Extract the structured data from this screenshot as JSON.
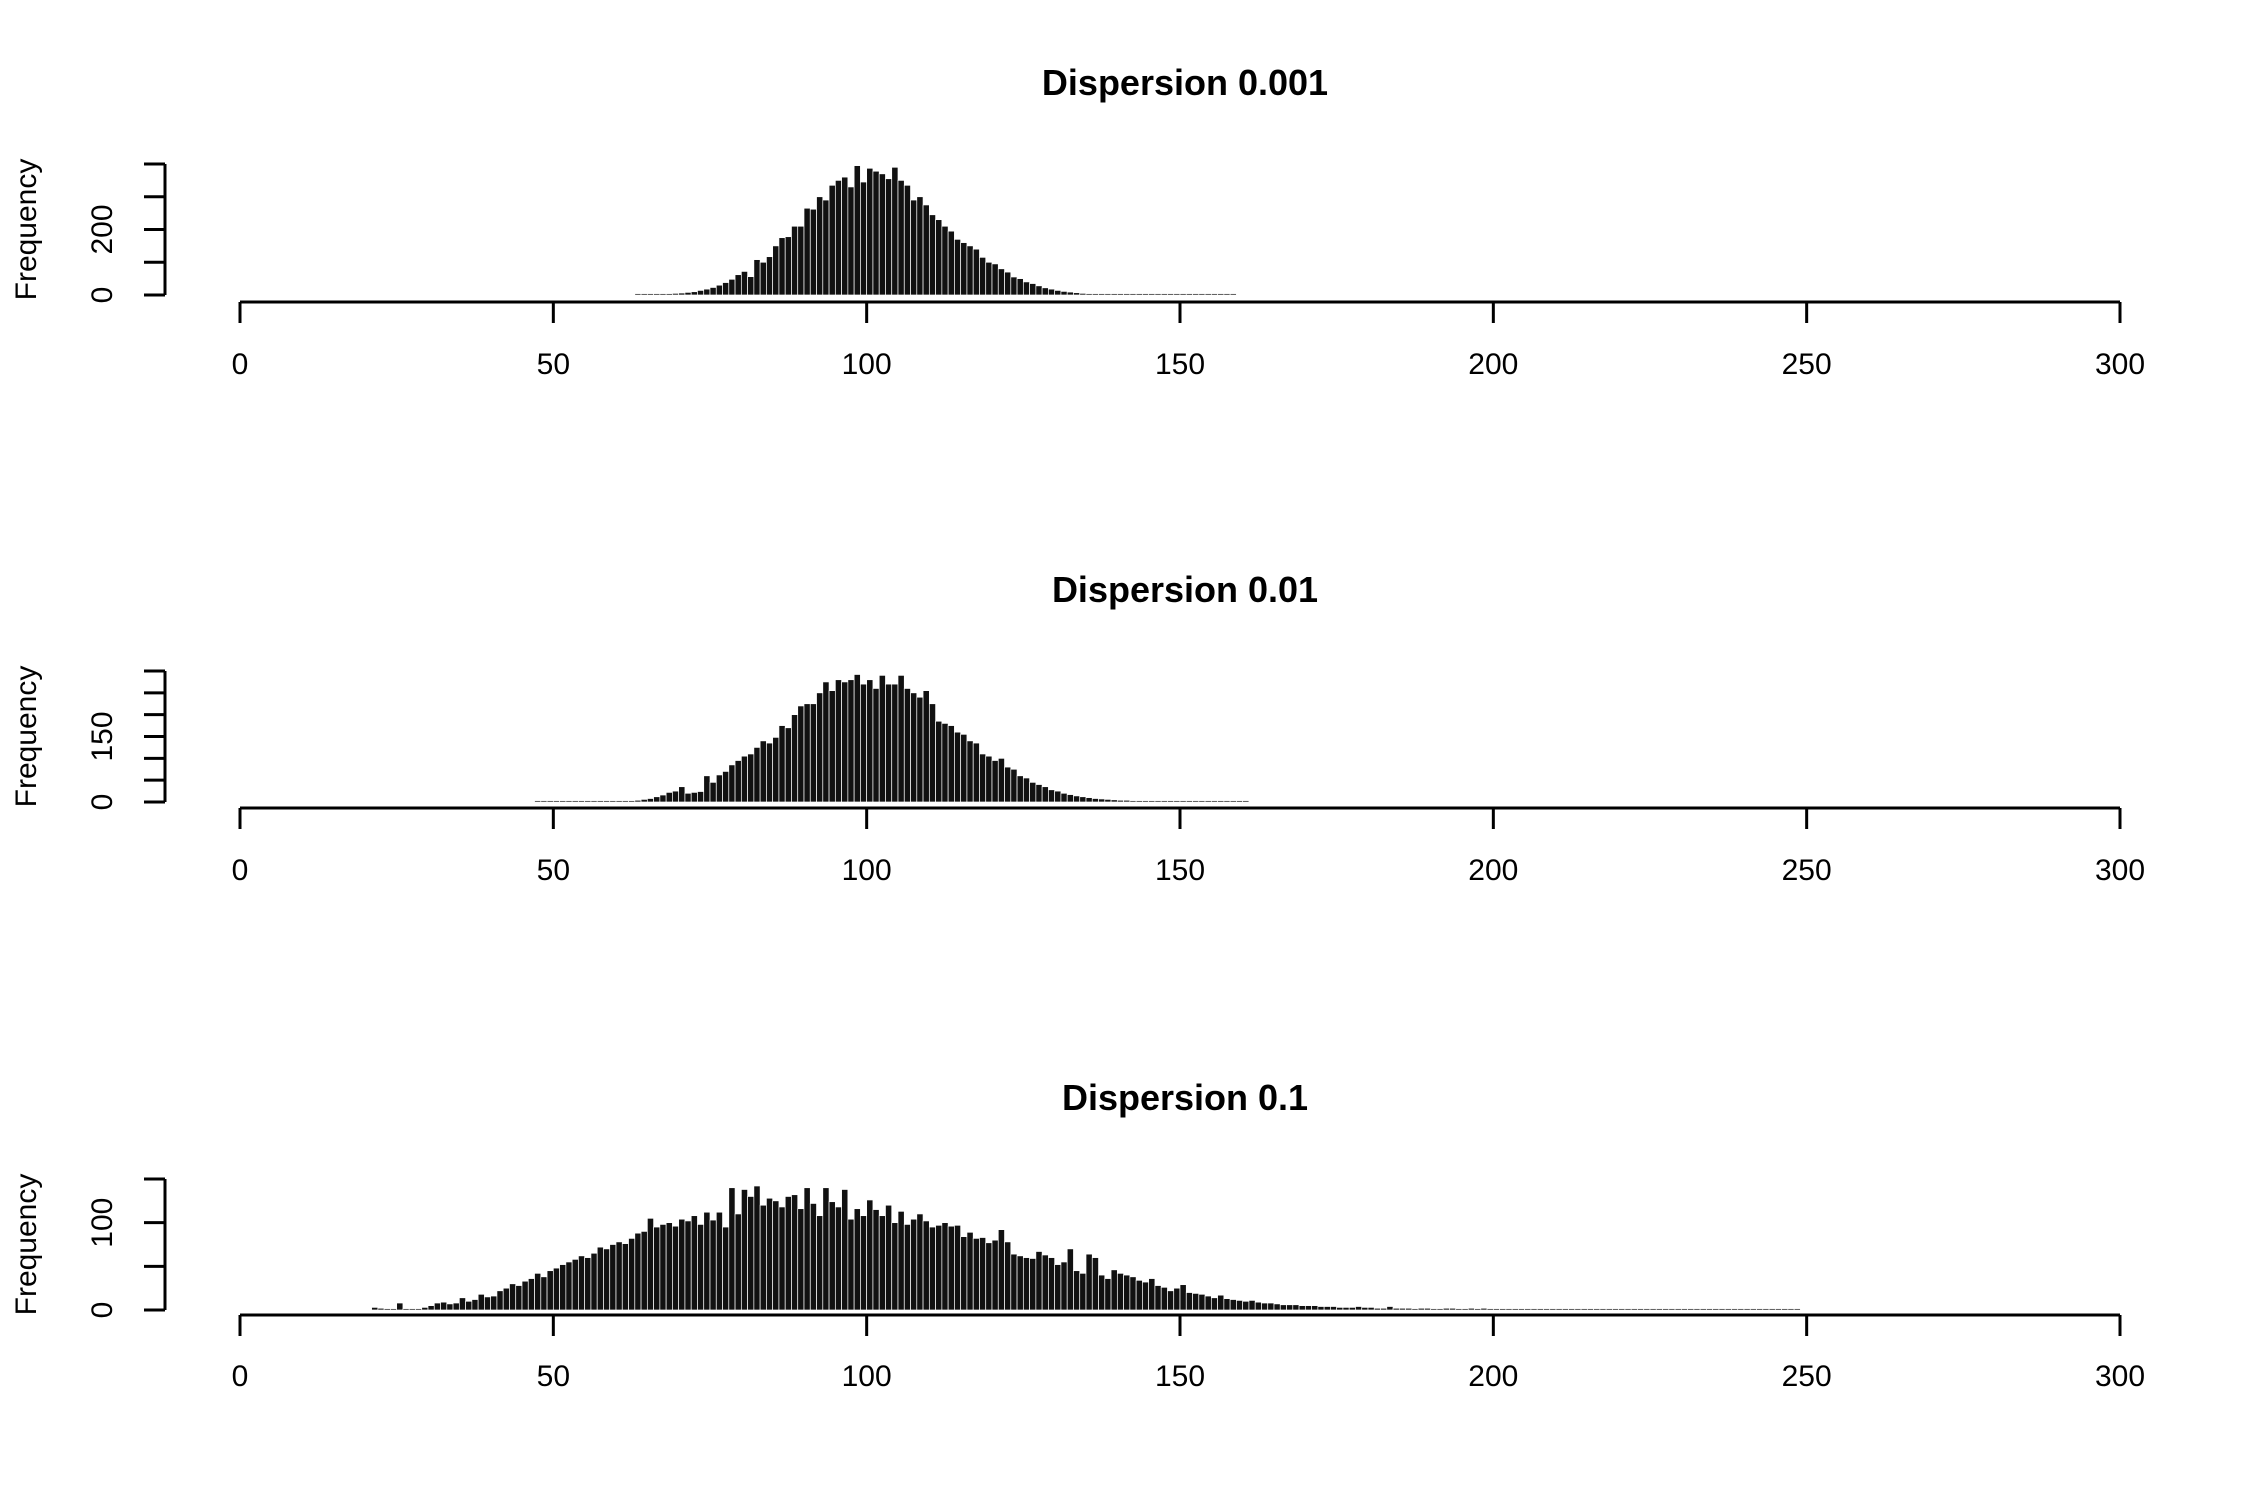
{
  "chart_data": [
    {
      "type": "bar",
      "title": "Dispersion 0.001",
      "xlabel": "",
      "ylabel": "Frequency",
      "xlim": [
        0,
        300
      ],
      "xticks": [
        "0",
        "50",
        "100",
        "150",
        "200",
        "250",
        "300"
      ],
      "ylim": [
        0,
        400
      ],
      "yticks_labeled": [
        "0",
        "200"
      ],
      "ytick_values": [
        0,
        100,
        200,
        300,
        400
      ],
      "x_range": [
        63,
        159
      ],
      "values": [
        1,
        1,
        2,
        2,
        3,
        4,
        5,
        6,
        8,
        10,
        14,
        18,
        23,
        30,
        38,
        48,
        62,
        72,
        56,
        108,
        100,
        117,
        150,
        175,
        178,
        210,
        210,
        265,
        262,
        300,
        290,
        335,
        350,
        360,
        330,
        395,
        345,
        387,
        378,
        370,
        355,
        390,
        350,
        335,
        290,
        300,
        275,
        245,
        230,
        210,
        195,
        170,
        160,
        150,
        140,
        115,
        100,
        95,
        80,
        70,
        55,
        50,
        40,
        35,
        28,
        22,
        18,
        14,
        11,
        9,
        7,
        5,
        4,
        3,
        3,
        2,
        2,
        1,
        1,
        1,
        1,
        1,
        1,
        0,
        0,
        0,
        0,
        0,
        0,
        0,
        0,
        0,
        0,
        0,
        0,
        0
      ]
    },
    {
      "type": "bar",
      "title": "Dispersion 0.01",
      "xlabel": "",
      "ylabel": "Frequency",
      "xlim": [
        0,
        300
      ],
      "xticks": [
        "0",
        "50",
        "100",
        "150",
        "200",
        "250",
        "300"
      ],
      "ylim": [
        0,
        300
      ],
      "yticks_labeled": [
        "0",
        "150"
      ],
      "ytick_values": [
        0,
        50,
        100,
        150,
        200,
        250,
        300
      ],
      "x_range": [
        47,
        161
      ],
      "values": [
        0,
        0,
        0,
        0,
        0,
        0,
        0,
        0,
        0,
        0,
        0,
        0,
        0,
        2,
        2,
        3,
        4,
        6,
        8,
        12,
        16,
        22,
        25,
        35,
        20,
        22,
        24,
        60,
        45,
        62,
        70,
        85,
        95,
        105,
        110,
        125,
        140,
        135,
        148,
        175,
        170,
        200,
        220,
        225,
        225,
        250,
        275,
        255,
        280,
        275,
        280,
        292,
        270,
        280,
        260,
        290,
        270,
        270,
        290,
        260,
        250,
        240,
        255,
        225,
        185,
        180,
        175,
        160,
        155,
        140,
        135,
        110,
        105,
        95,
        100,
        80,
        75,
        60,
        55,
        45,
        40,
        35,
        28,
        25,
        20,
        17,
        14,
        12,
        10,
        8,
        7,
        6,
        5,
        4,
        4,
        3,
        2,
        2,
        2,
        1,
        1,
        1,
        1,
        1,
        1,
        0,
        0,
        0,
        0,
        0,
        0,
        0,
        0,
        0
      ]
    },
    {
      "type": "bar",
      "title": "Dispersion 0.1",
      "xlabel": "",
      "ylabel": "Frequency",
      "xlim": [
        0,
        300
      ],
      "xticks": [
        "0",
        "50",
        "100",
        "150",
        "200",
        "250",
        "300"
      ],
      "ylim": [
        0,
        150
      ],
      "yticks_labeled": [
        "0",
        "100"
      ],
      "ytick_values": [
        0,
        50,
        100,
        150
      ],
      "x_range": [
        21,
        246
      ],
      "values": [
        3,
        2,
        1,
        1,
        8,
        0,
        1,
        1,
        3,
        5,
        8,
        9,
        7,
        8,
        14,
        10,
        12,
        18,
        15,
        16,
        22,
        25,
        30,
        28,
        33,
        36,
        42,
        38,
        45,
        48,
        52,
        55,
        58,
        62,
        60,
        65,
        72,
        70,
        75,
        78,
        76,
        82,
        88,
        90,
        105,
        95,
        98,
        100,
        96,
        104,
        102,
        108,
        98,
        112,
        103,
        112,
        95,
        140,
        110,
        138,
        130,
        142,
        120,
        128,
        125,
        118,
        130,
        132,
        116,
        140,
        122,
        108,
        140,
        124,
        118,
        138,
        104,
        116,
        108,
        126,
        115,
        108,
        120,
        100,
        113,
        98,
        104,
        110,
        102,
        95,
        97,
        100,
        96,
        97,
        84,
        89,
        82,
        83,
        77,
        80,
        92,
        78,
        64,
        62,
        60,
        59,
        67,
        63,
        60,
        52,
        55,
        70,
        45,
        42,
        64,
        60,
        40,
        36,
        46,
        42,
        40,
        38,
        34,
        32,
        36,
        28,
        26,
        22,
        25,
        29,
        20,
        19,
        18,
        16,
        14,
        17,
        13,
        12,
        11,
        10,
        11,
        9,
        8,
        8,
        7,
        6,
        6,
        6,
        5,
        5,
        5,
        4,
        4,
        4,
        3,
        3,
        3,
        4,
        3,
        3,
        2,
        2,
        4,
        2,
        2,
        2,
        1,
        2,
        2,
        1,
        1,
        2,
        2,
        1,
        1,
        2,
        1,
        2,
        1,
        1,
        1,
        1,
        1,
        1,
        1,
        1,
        0,
        1,
        1,
        0,
        1,
        1,
        0,
        1,
        0,
        0,
        1,
        0,
        0,
        1,
        0,
        0,
        0,
        1,
        0,
        0,
        1,
        0,
        0,
        0,
        0,
        0,
        0,
        0,
        0,
        0,
        0,
        0,
        0,
        0,
        1,
        0,
        0,
        0,
        0,
        0,
        0,
        0
      ]
    }
  ]
}
